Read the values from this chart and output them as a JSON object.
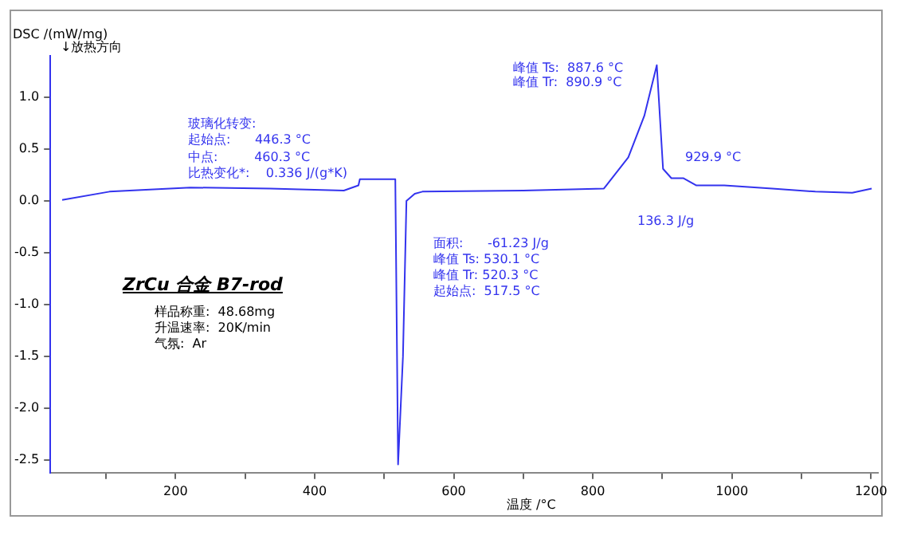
{
  "chart_data": {
    "type": "line",
    "title": "ZrCu 合金 B7-rod",
    "xlabel": "温度 /°C",
    "ylabel": "DSC /(mW/mg)",
    "x": [
      37,
      105,
      221,
      336,
      442,
      463,
      465,
      488,
      516,
      520,
      527,
      532,
      544,
      555,
      700,
      816,
      851,
      874,
      892,
      901,
      913,
      930,
      949,
      989,
      1058,
      1120,
      1173,
      1201
    ],
    "series": [
      {
        "color": "#3333ee",
        "values": [
          0.01,
          0.09,
          0.13,
          0.12,
          0.1,
          0.15,
          0.21,
          0.21,
          0.21,
          -2.54,
          -1.5,
          0.0,
          0.07,
          0.09,
          0.1,
          0.12,
          0.42,
          0.82,
          1.31,
          0.31,
          0.22,
          0.22,
          0.15,
          0.15,
          0.12,
          0.09,
          0.08,
          0.12
        ]
      }
    ],
    "xlim": [
      20,
      1210
    ],
    "ylim": [
      -2.62,
      1.4
    ],
    "xticks": [
      {
        "value": 100,
        "label": null
      },
      200,
      {
        "value": 300,
        "label": null
      },
      400,
      {
        "value": 500,
        "label": null
      },
      600,
      {
        "value": 700,
        "label": null
      },
      800,
      {
        "value": 900,
        "label": null
      },
      1000,
      {
        "value": 1100,
        "label": null
      },
      1200
    ],
    "yticks": [
      -2.5,
      {
        "value": -2,
        "label": "-2.0"
      },
      -1.5,
      {
        "value": -1,
        "label": "-1.0"
      },
      -0.5,
      {
        "value": 0,
        "label": "0.0"
      },
      0.5,
      {
        "value": 1,
        "label": "1.0"
      }
    ],
    "grid": false,
    "legend": false,
    "marker": "none",
    "line_style": "solid",
    "annotations": [
      "↓放热方向",
      "玻璃化转变:",
      "起始点:      446.3 °C",
      "中点:         460.3 °C",
      "比热变化*:    0.336 J/(g*K)",
      "面积:      -61.23 J/g",
      "峰值 Ts: 530.1 °C",
      "峰值 Tr: 520.3 °C",
      "起始点:  517.5 °C",
      "峰值 Ts:  887.6 °C",
      "峰值 Tr:  890.9 °C",
      "929.9 °C",
      "136.3 J/g",
      "样品称重:  48.68mg",
      "升温速率:  20K/min",
      "气氛:  Ar"
    ]
  }
}
